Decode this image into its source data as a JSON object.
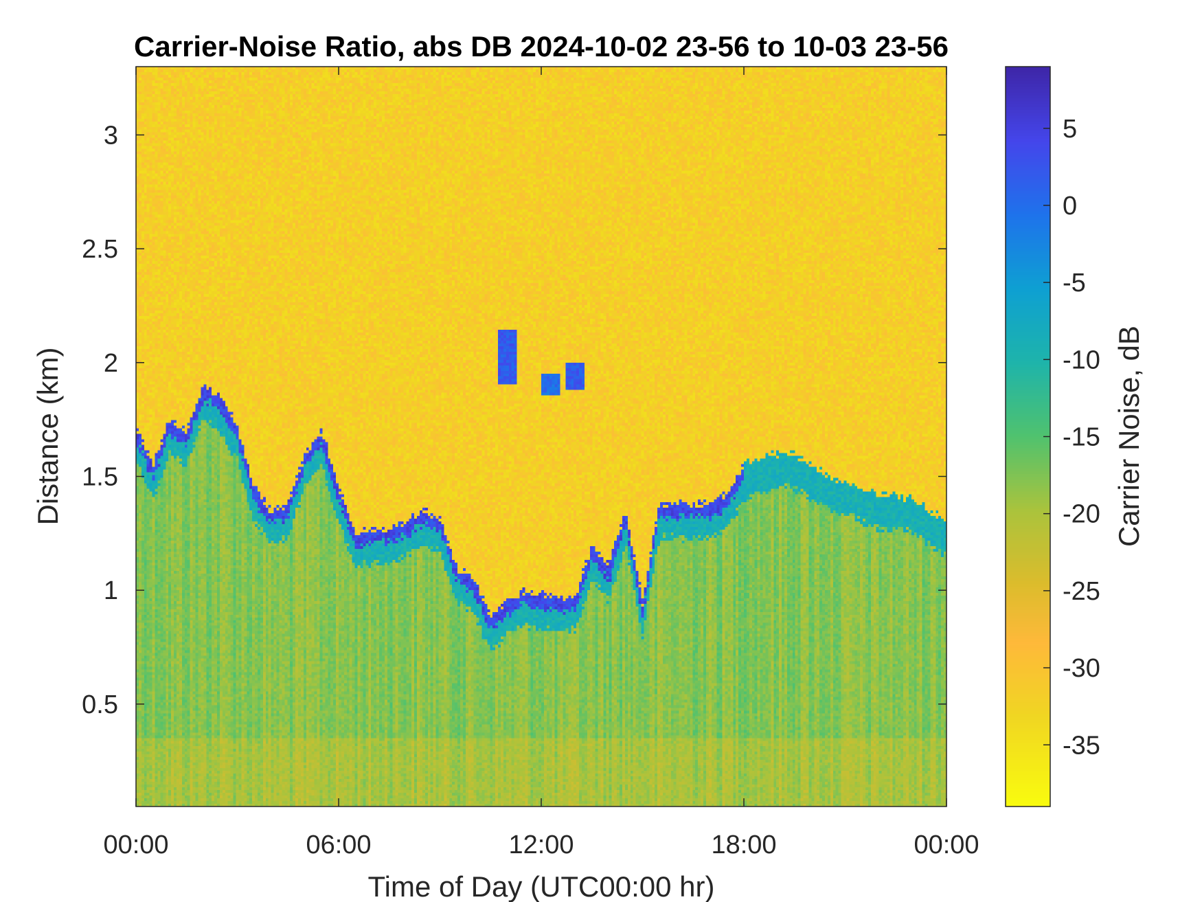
{
  "chart_data": {
    "type": "heatmap",
    "title": "Carrier-Noise Ratio, abs DB 2024-10-02 23-56 to 10-03 23-56",
    "xlabel": "Time of Day (UTC00:00 hr)",
    "ylabel": "Distance (km)",
    "colorbar_label": "Carrier Noise, dB",
    "colormap": "parula",
    "xlim_hours": [
      0,
      24
    ],
    "ylim_km": [
      0.05,
      3.3
    ],
    "clim_db": [
      -39,
      9
    ],
    "x_ticks": [
      {
        "value": 0,
        "label": "00:00"
      },
      {
        "value": 6,
        "label": "06:00"
      },
      {
        "value": 12,
        "label": "12:00"
      },
      {
        "value": 18,
        "label": "18:00"
      },
      {
        "value": 24,
        "label": "00:00"
      }
    ],
    "y_ticks": [
      {
        "value": 0.5,
        "label": "0.5"
      },
      {
        "value": 1,
        "label": "1"
      },
      {
        "value": 1.5,
        "label": "1.5"
      },
      {
        "value": 2,
        "label": "2"
      },
      {
        "value": 2.5,
        "label": "2.5"
      },
      {
        "value": 3,
        "label": "3"
      }
    ],
    "colorbar_ticks": [
      {
        "value": 5,
        "label": "5"
      },
      {
        "value": 0,
        "label": "0"
      },
      {
        "value": -5,
        "label": "-5"
      },
      {
        "value": -10,
        "label": "-10"
      },
      {
        "value": -15,
        "label": "-15"
      },
      {
        "value": -20,
        "label": "-20"
      },
      {
        "value": -25,
        "label": "-25"
      },
      {
        "value": -30,
        "label": "-30"
      },
      {
        "value": -35,
        "label": "-35"
      }
    ],
    "background_noise_db": -32,
    "boundary_layer_top_km": [
      [
        0,
        1.72
      ],
      [
        0.5,
        1.55
      ],
      [
        1,
        1.75
      ],
      [
        1.5,
        1.7
      ],
      [
        2,
        1.9
      ],
      [
        2.5,
        1.85
      ],
      [
        3,
        1.72
      ],
      [
        3.5,
        1.45
      ],
      [
        4,
        1.35
      ],
      [
        4.5,
        1.38
      ],
      [
        5,
        1.6
      ],
      [
        5.5,
        1.7
      ],
      [
        6,
        1.45
      ],
      [
        6.5,
        1.25
      ],
      [
        7,
        1.27
      ],
      [
        7.5,
        1.27
      ],
      [
        8,
        1.3
      ],
      [
        8.5,
        1.35
      ],
      [
        9,
        1.32
      ],
      [
        9.5,
        1.1
      ],
      [
        10,
        1.05
      ],
      [
        10.5,
        0.88
      ],
      [
        11,
        0.95
      ],
      [
        11.5,
        1.0
      ],
      [
        12,
        0.98
      ],
      [
        12.5,
        0.97
      ],
      [
        13,
        0.97
      ],
      [
        13.5,
        1.2
      ],
      [
        14,
        1.1
      ],
      [
        14.5,
        1.35
      ],
      [
        15,
        0.95
      ],
      [
        15.5,
        1.38
      ],
      [
        16,
        1.38
      ],
      [
        16.5,
        1.38
      ],
      [
        17,
        1.38
      ],
      [
        17.5,
        1.42
      ],
      [
        18,
        1.55
      ],
      [
        18.5,
        1.58
      ],
      [
        19,
        1.6
      ],
      [
        19.5,
        1.6
      ],
      [
        20,
        1.55
      ],
      [
        20.5,
        1.5
      ],
      [
        21,
        1.48
      ],
      [
        21.5,
        1.45
      ],
      [
        22,
        1.42
      ],
      [
        22.5,
        1.42
      ],
      [
        23,
        1.4
      ],
      [
        23.5,
        1.35
      ],
      [
        24,
        1.3
      ]
    ],
    "residual_clouds": [
      {
        "time_hr": 11,
        "height_km": [
          1.9,
          2.15
        ],
        "peak_db": 5
      },
      {
        "time_hr": 12.3,
        "height_km": [
          1.85,
          1.95
        ],
        "peak_db": 3
      },
      {
        "time_hr": 13.0,
        "height_km": [
          1.88,
          2.0
        ],
        "peak_db": 5
      }
    ]
  }
}
